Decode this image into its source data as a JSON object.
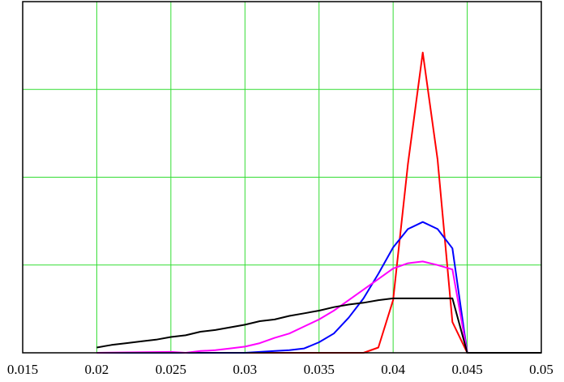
{
  "chart_data": {
    "type": "line",
    "title": "",
    "xlabel": "",
    "ylabel": "",
    "xlim": [
      0.015,
      0.05
    ],
    "ylim": [
      0,
      4
    ],
    "grid": true,
    "grid_color": "#33dd33",
    "x_ticks": [
      0.015,
      0.02,
      0.025,
      0.03,
      0.035,
      0.04,
      0.045,
      0.05
    ],
    "x_tick_labels": [
      "0.015",
      "0.02",
      "0.025",
      "0.03",
      "0.035",
      "0.04",
      "0.045",
      "0.05"
    ],
    "y_ticks": [
      1,
      2,
      3
    ],
    "series": [
      {
        "color": "#ff0000",
        "x": [
          0.02,
          0.025,
          0.03,
          0.035,
          0.038,
          0.039,
          0.04,
          0.041,
          0.042,
          0.043,
          0.044,
          0.045,
          0.05
        ],
        "y": [
          0,
          0,
          0,
          0,
          0,
          0.06,
          0.6,
          2.15,
          3.42,
          2.2,
          0.35,
          0,
          0
        ]
      },
      {
        "color": "#0000ff",
        "x": [
          0.02,
          0.025,
          0.03,
          0.031,
          0.032,
          0.033,
          0.034,
          0.035,
          0.036,
          0.037,
          0.038,
          0.039,
          0.04,
          0.041,
          0.042,
          0.043,
          0.044,
          0.045,
          0.05
        ],
        "y": [
          0,
          0,
          0,
          0.01,
          0.02,
          0.03,
          0.05,
          0.12,
          0.22,
          0.4,
          0.62,
          0.9,
          1.2,
          1.41,
          1.49,
          1.41,
          1.19,
          0,
          0
        ]
      },
      {
        "color": "#ff00ff",
        "x": [
          0.02,
          0.025,
          0.026,
          0.027,
          0.028,
          0.029,
          0.03,
          0.031,
          0.032,
          0.033,
          0.034,
          0.035,
          0.036,
          0.037,
          0.038,
          0.039,
          0.04,
          0.041,
          0.042,
          0.043,
          0.044,
          0.045,
          0.05
        ],
        "y": [
          0,
          0.01,
          0,
          0.02,
          0.03,
          0.05,
          0.07,
          0.11,
          0.17,
          0.22,
          0.3,
          0.38,
          0.48,
          0.6,
          0.72,
          0.84,
          0.96,
          1.02,
          1.04,
          1.0,
          0.95,
          0,
          0
        ]
      },
      {
        "color": "#000000",
        "x": [
          0.02,
          0.021,
          0.022,
          0.023,
          0.024,
          0.025,
          0.026,
          0.027,
          0.028,
          0.029,
          0.03,
          0.031,
          0.032,
          0.033,
          0.034,
          0.035,
          0.036,
          0.037,
          0.038,
          0.039,
          0.04,
          0.041,
          0.042,
          0.043,
          0.044,
          0.045,
          0.05
        ],
        "y": [
          0.06,
          0.09,
          0.11,
          0.13,
          0.15,
          0.18,
          0.2,
          0.24,
          0.26,
          0.29,
          0.32,
          0.36,
          0.38,
          0.42,
          0.45,
          0.48,
          0.52,
          0.55,
          0.57,
          0.6,
          0.62,
          0.62,
          0.62,
          0.62,
          0.62,
          0,
          0
        ]
      }
    ]
  }
}
